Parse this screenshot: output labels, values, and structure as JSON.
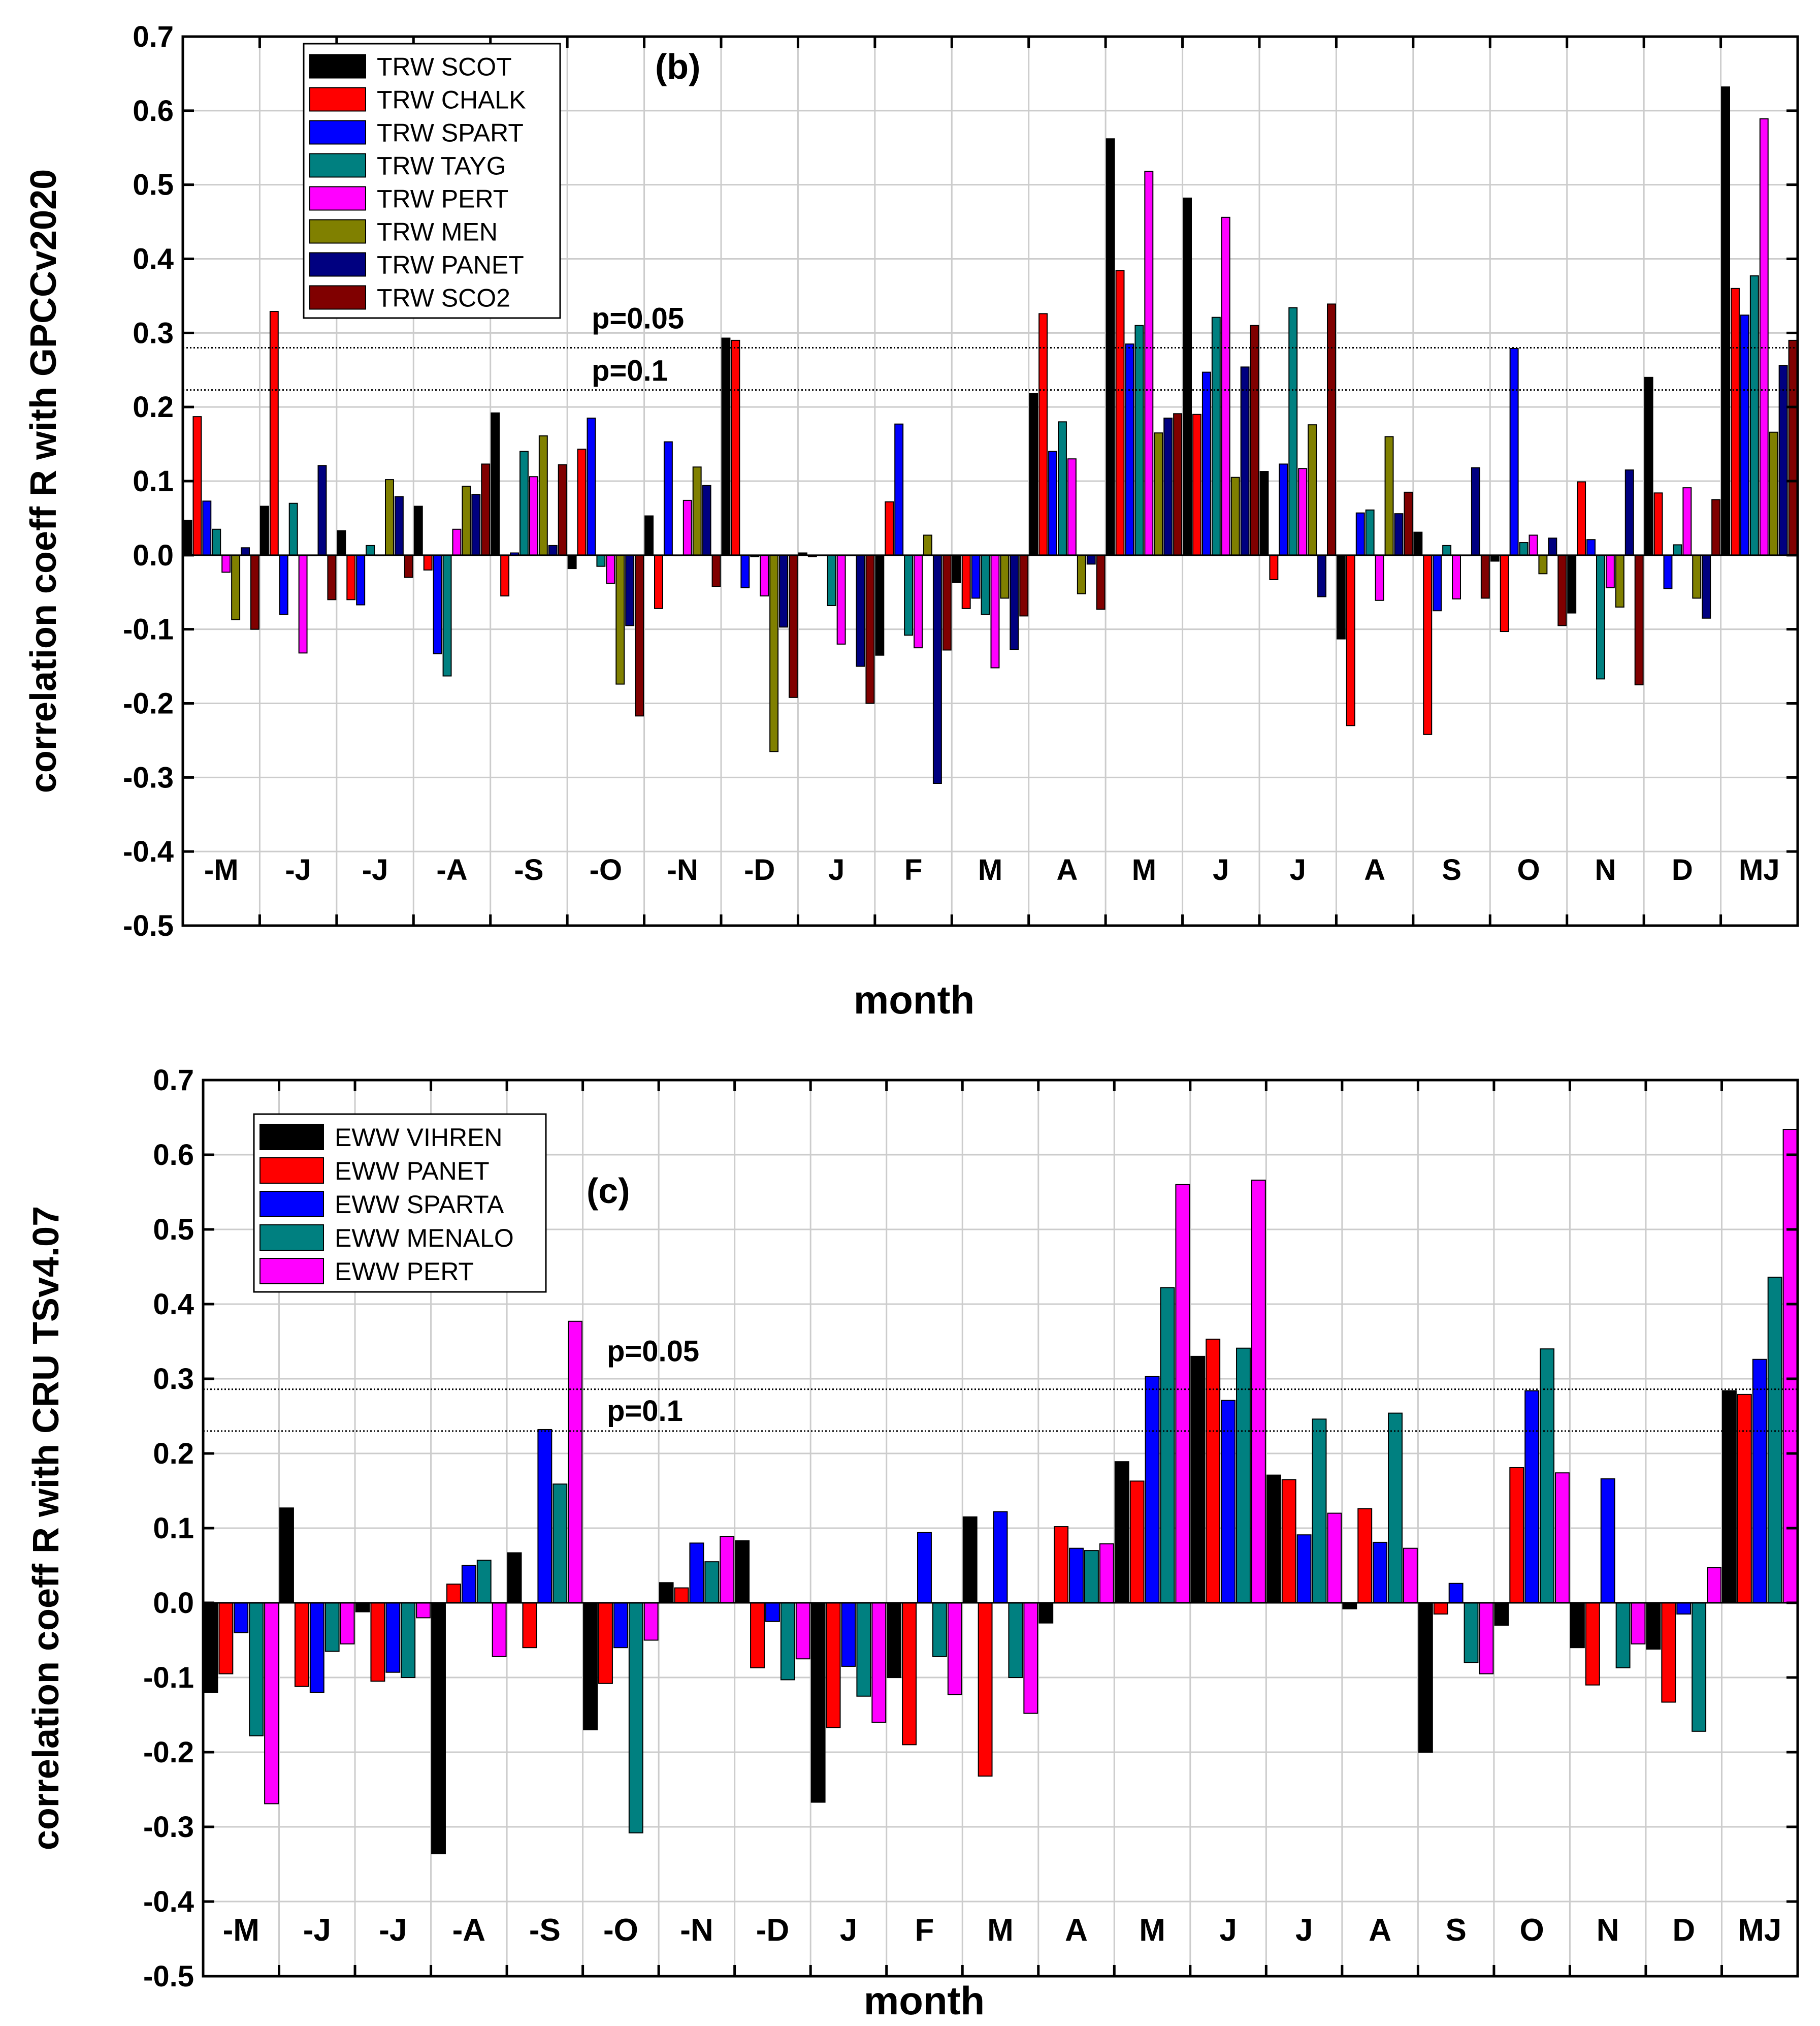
{
  "colors": {
    "black": "#000000",
    "red": "#ff0000",
    "blue": "#0000ff",
    "teal": "#008080",
    "magenta": "#ff00ff",
    "olive": "#808000",
    "navy": "#000080",
    "maroon": "#800000",
    "grid": "#cccccc"
  },
  "chart_data": [
    {
      "type": "bar",
      "panel_label": "(b)",
      "xlabel": "month",
      "ylabel": "correlation coeff R with GPCCv2020",
      "ylim": [
        -0.5,
        0.7
      ],
      "yticks": [
        "-0.5",
        "-0.4",
        "-0.3",
        "-0.2",
        "-0.1",
        "0.0",
        "0.1",
        "0.2",
        "0.3",
        "0.4",
        "0.5",
        "0.6",
        "0.7"
      ],
      "categories": [
        "-M",
        "-J",
        "-J",
        "-A",
        "-S",
        "-O",
        "-N",
        "-D",
        "J",
        "F",
        "M",
        "A",
        "M",
        "J",
        "J",
        "A",
        "S",
        "O",
        "N",
        "D",
        "MJ"
      ],
      "grid": true,
      "legend_position": "top-left",
      "thresholds": [
        {
          "label": "p=0.05",
          "value": 0.28
        },
        {
          "label": "p=0.1",
          "value": 0.223
        }
      ],
      "series": [
        {
          "name": "TRW SCOT",
          "color": "black",
          "values": [
            0.047,
            0.066,
            0.033,
            0.066,
            0.192,
            -0.018,
            0.053,
            0.293,
            0.003,
            -0.135,
            -0.037,
            0.218,
            0.562,
            0.482,
            0.113,
            -0.113,
            0.031,
            -0.008,
            -0.078,
            0.24,
            0.632
          ]
        },
        {
          "name": "TRW CHALK",
          "color": "red",
          "values": [
            0.187,
            0.329,
            -0.06,
            -0.02,
            -0.055,
            0.143,
            -0.072,
            0.29,
            -0.002,
            0.072,
            -0.072,
            0.326,
            0.384,
            0.19,
            -0.033,
            -0.23,
            -0.242,
            -0.103,
            0.099,
            0.084,
            0.36
          ]
        },
        {
          "name": "TRW SPART",
          "color": "blue",
          "values": [
            0.073,
            -0.08,
            -0.067,
            -0.133,
            0.003,
            0.185,
            0.153,
            -0.044,
            0.0,
            0.177,
            -0.058,
            0.14,
            0.285,
            0.247,
            0.123,
            0.057,
            -0.075,
            0.279,
            0.021,
            -0.045,
            0.324
          ]
        },
        {
          "name": "TRW TAYG",
          "color": "teal",
          "values": [
            0.035,
            0.07,
            0.013,
            -0.163,
            0.14,
            -0.015,
            0.0,
            -0.002,
            -0.068,
            -0.108,
            -0.08,
            0.18,
            0.31,
            0.321,
            0.334,
            0.061,
            0.013,
            0.017,
            -0.167,
            0.014,
            0.377
          ]
        },
        {
          "name": "TRW PERT",
          "color": "magenta",
          "values": [
            -0.023,
            -0.132,
            0.0,
            0.035,
            0.106,
            -0.038,
            0.074,
            -0.055,
            -0.12,
            -0.125,
            -0.152,
            0.13,
            0.518,
            0.456,
            0.117,
            -0.061,
            -0.059,
            0.027,
            -0.044,
            0.091,
            0.589
          ]
        },
        {
          "name": "TRW MEN",
          "color": "olive",
          "values": [
            -0.087,
            0.0,
            0.102,
            0.093,
            0.161,
            -0.174,
            0.119,
            -0.265,
            0.0,
            0.027,
            -0.058,
            -0.052,
            0.165,
            0.105,
            0.176,
            0.16,
            0.0,
            -0.025,
            -0.07,
            -0.058,
            0.166
          ]
        },
        {
          "name": "TRW PANET",
          "color": "navy",
          "values": [
            0.01,
            0.121,
            0.079,
            0.082,
            0.013,
            -0.095,
            0.094,
            -0.097,
            -0.15,
            -0.308,
            -0.127,
            -0.012,
            0.185,
            0.254,
            -0.056,
            0.056,
            0.118,
            0.023,
            0.115,
            -0.085,
            0.256
          ]
        },
        {
          "name": "TRW SCO2",
          "color": "maroon",
          "values": [
            -0.1,
            -0.06,
            -0.03,
            0.123,
            0.122,
            -0.217,
            -0.042,
            -0.192,
            -0.2,
            -0.128,
            -0.082,
            -0.073,
            0.191,
            0.31,
            0.339,
            0.085,
            -0.058,
            -0.095,
            -0.175,
            0.075,
            0.29
          ]
        }
      ]
    },
    {
      "type": "bar",
      "panel_label": "(c)",
      "xlabel": "month",
      "ylabel": "correlation coeff R with CRU TSv4.07",
      "ylim": [
        -0.5,
        0.7
      ],
      "yticks": [
        "-0.5",
        "-0.4",
        "-0.3",
        "-0.2",
        "-0.1",
        "0.0",
        "0.1",
        "0.2",
        "0.3",
        "0.4",
        "0.5",
        "0.6",
        "0.7"
      ],
      "categories": [
        "-M",
        "-J",
        "-J",
        "-A",
        "-S",
        "-O",
        "-N",
        "-D",
        "J",
        "F",
        "M",
        "A",
        "M",
        "J",
        "J",
        "A",
        "S",
        "O",
        "N",
        "D",
        "MJ"
      ],
      "grid": true,
      "legend_position": "top-left",
      "thresholds": [
        {
          "label": "p=0.05",
          "value": 0.286
        },
        {
          "label": "p=0.1",
          "value": 0.23
        }
      ],
      "series": [
        {
          "name": "EWW VIHREN",
          "color": "black",
          "values": [
            -0.12,
            0.127,
            -0.012,
            -0.336,
            0.067,
            -0.17,
            0.027,
            0.083,
            -0.267,
            -0.1,
            0.115,
            -0.027,
            0.189,
            0.33,
            0.171,
            -0.008,
            -0.2,
            -0.03,
            -0.06,
            -0.062,
            0.284
          ]
        },
        {
          "name": "EWW PANET",
          "color": "red",
          "values": [
            -0.095,
            -0.112,
            -0.105,
            0.025,
            -0.06,
            -0.108,
            0.02,
            -0.087,
            -0.167,
            -0.19,
            -0.232,
            0.102,
            0.163,
            0.353,
            0.165,
            0.126,
            -0.015,
            0.181,
            -0.11,
            -0.133,
            0.279
          ]
        },
        {
          "name": "EWW SPARTA",
          "color": "blue",
          "values": [
            -0.04,
            -0.12,
            -0.093,
            0.05,
            0.232,
            -0.06,
            0.08,
            -0.025,
            -0.085,
            0.094,
            0.122,
            0.073,
            0.303,
            0.271,
            0.091,
            0.081,
            0.026,
            0.284,
            0.166,
            -0.015,
            0.326
          ]
        },
        {
          "name": "EWW MENALO",
          "color": "teal",
          "values": [
            -0.178,
            -0.065,
            -0.1,
            0.057,
            0.159,
            -0.308,
            0.055,
            -0.103,
            -0.125,
            -0.072,
            -0.1,
            0.07,
            0.422,
            0.341,
            0.246,
            0.254,
            -0.08,
            0.34,
            -0.087,
            -0.172,
            0.436
          ]
        },
        {
          "name": "EWW PERT",
          "color": "magenta",
          "values": [
            -0.269,
            -0.055,
            -0.02,
            -0.072,
            0.377,
            -0.05,
            0.089,
            -0.075,
            -0.16,
            -0.123,
            -0.148,
            0.079,
            0.56,
            0.566,
            0.12,
            0.073,
            -0.095,
            0.174,
            -0.055,
            0.047,
            0.634
          ]
        }
      ]
    }
  ]
}
